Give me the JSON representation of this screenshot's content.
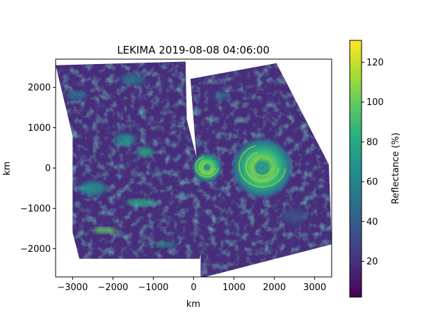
{
  "chart_data": {
    "type": "heatmap",
    "title": "LEKIMA 2019-08-08 04:06:00",
    "xlabel": "km",
    "ylabel": "km",
    "xlim": [
      -3420,
      3420
    ],
    "ylim": [
      -2700,
      2700
    ],
    "x_ticks": [
      -3000,
      -2000,
      -1000,
      0,
      1000,
      2000,
      3000
    ],
    "x_tick_labels": [
      "−3000",
      "−2000",
      "−1000",
      "0",
      "1000",
      "2000",
      "3000"
    ],
    "y_ticks": [
      -2000,
      -1000,
      0,
      1000,
      2000
    ],
    "y_tick_labels": [
      "−2000",
      "−1000",
      "0",
      "1000",
      "2000"
    ],
    "colorbar": {
      "label": "Reflectance (%)",
      "range": [
        2,
        131
      ],
      "ticks": [
        20,
        40,
        60,
        80,
        100,
        120
      ],
      "tick_labels": [
        "20",
        "40",
        "60",
        "80",
        "100",
        "120"
      ],
      "colormap": "viridis"
    },
    "swaths": [
      {
        "name": "left",
        "polygon_km": [
          [
            -3420,
            2550
          ],
          [
            -200,
            2640
          ],
          [
            -170,
            1200
          ],
          [
            400,
            -1000
          ],
          [
            150,
            -2250
          ],
          [
            -2830,
            -2250
          ],
          [
            -3000,
            -1600
          ],
          [
            -3000,
            800
          ]
        ]
      },
      {
        "name": "right",
        "polygon_km": [
          [
            -80,
            2210
          ],
          [
            2050,
            2600
          ],
          [
            3350,
            90
          ],
          [
            3420,
            -1890
          ],
          [
            170,
            -2730
          ],
          [
            180,
            -1200
          ]
        ]
      }
    ],
    "features": [
      {
        "name": "typhoon-eye-1",
        "center_km": [
          330,
          10
        ],
        "radius_km": 380,
        "peak": 100
      },
      {
        "name": "typhoon-eye-2",
        "center_km": [
          1700,
          0
        ],
        "radius_km": 780,
        "peak": 110
      }
    ]
  },
  "colors": {
    "viridis_low": "#440154",
    "viridis_mid": "#21908d",
    "viridis_high": "#fde725"
  }
}
